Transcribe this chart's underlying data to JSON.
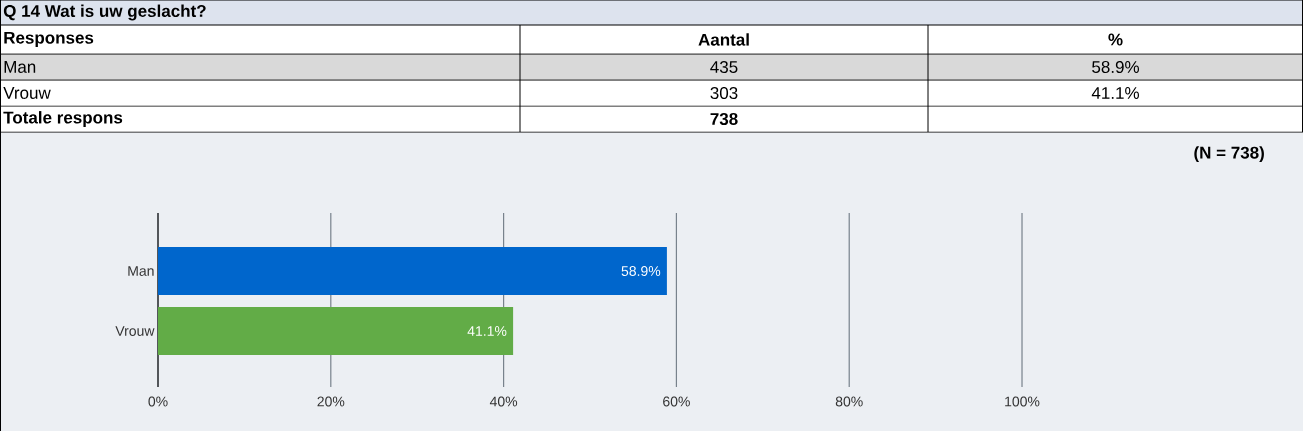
{
  "chart_data": {
    "type": "bar",
    "orientation": "horizontal",
    "title": "Q 14 Wat is uw geslacht?",
    "categories": [
      "Man",
      "Vrouw"
    ],
    "values": [
      58.9,
      41.1
    ],
    "colors": [
      "#0066cc",
      "#62ac47"
    ],
    "value_labels": [
      "58.9%",
      "41.1%"
    ],
    "xlim": [
      0,
      100
    ],
    "xticks": [
      {
        "value": 0,
        "label": "0%"
      },
      {
        "value": 20,
        "label": "20%"
      },
      {
        "value": 40,
        "label": "40%"
      },
      {
        "value": 60,
        "label": "60%"
      },
      {
        "value": 80,
        "label": "80%"
      },
      {
        "value": 100,
        "label": "100%"
      }
    ],
    "grid": "x",
    "legend": false,
    "annotations": [
      "(N = 738)",
      "Responses",
      "Aantal",
      "%",
      "435",
      "303",
      "Totale respons",
      "738"
    ]
  }
}
